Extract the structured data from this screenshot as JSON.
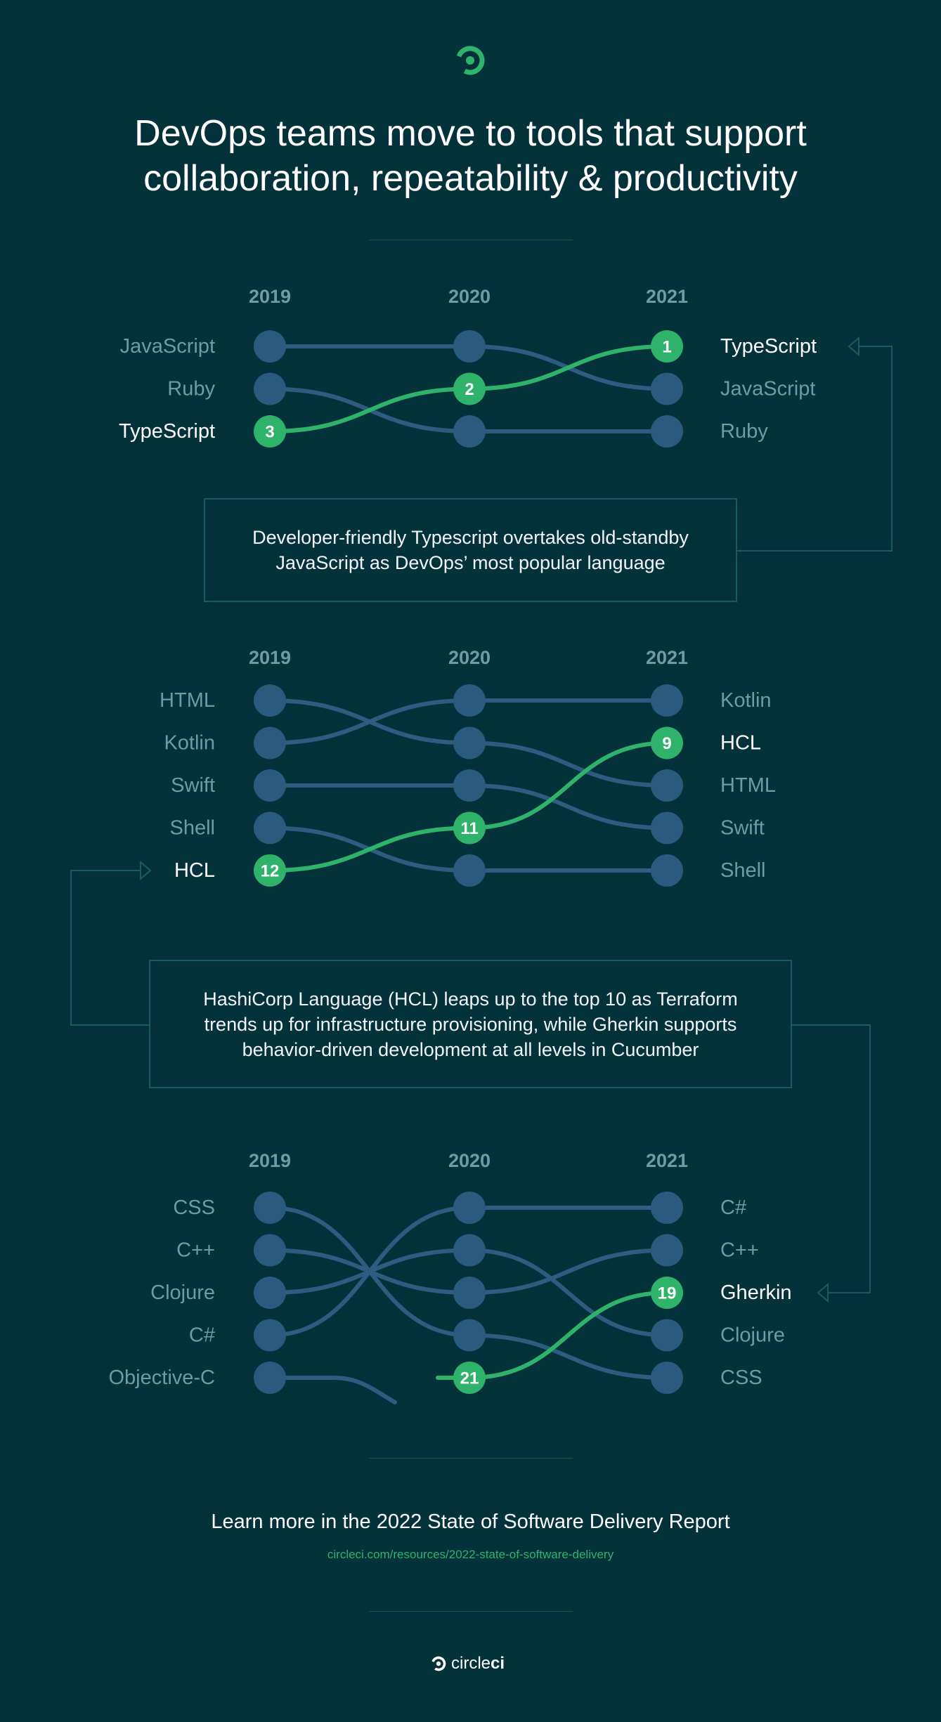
{
  "title": "DevOps teams move to tools that support\ncollaboration, repeatability & productivity",
  "colors": {
    "background": "#04323b",
    "node": "#2a5a7e",
    "line": "#2d5c80",
    "highlight": "#2fb36a",
    "label_dim": "#6f9aa8",
    "year_label": "#6f9aa8",
    "connector": "#1b5a64"
  },
  "icons": {
    "logo": "circleci-logo-icon",
    "arrow": "triangle-arrow-icon"
  },
  "chart_data": [
    {
      "type": "bump",
      "years": [
        "2019",
        "2020",
        "2021"
      ],
      "left_labels": [
        "JavaScript",
        "Ruby",
        "TypeScript"
      ],
      "right_labels": [
        "TypeScript",
        "JavaScript",
        "Ruby"
      ],
      "highlight": "TypeScript",
      "series": [
        {
          "name": "JavaScript",
          "positions": [
            1,
            1,
            2
          ]
        },
        {
          "name": "Ruby",
          "positions": [
            2,
            3,
            3
          ]
        },
        {
          "name": "TypeScript",
          "positions": [
            3,
            2,
            1
          ],
          "ranks": [
            "3",
            "2",
            "1"
          ]
        }
      ]
    },
    {
      "type": "bump",
      "years": [
        "2019",
        "2020",
        "2021"
      ],
      "left_labels": [
        "HTML",
        "Kotlin",
        "Swift",
        "Shell",
        "HCL"
      ],
      "right_labels": [
        "Kotlin",
        "HCL",
        "HTML",
        "Swift",
        "Shell"
      ],
      "highlight": "HCL",
      "series": [
        {
          "name": "HTML",
          "positions": [
            1,
            2,
            3
          ]
        },
        {
          "name": "Kotlin",
          "positions": [
            2,
            1,
            1
          ]
        },
        {
          "name": "Swift",
          "positions": [
            3,
            3,
            4
          ]
        },
        {
          "name": "Shell",
          "positions": [
            4,
            5,
            5
          ]
        },
        {
          "name": "HCL",
          "positions": [
            5,
            4,
            2
          ],
          "ranks": [
            "12",
            "11",
            "9"
          ]
        }
      ]
    },
    {
      "type": "bump",
      "years": [
        "2019",
        "2020",
        "2021"
      ],
      "left_labels": [
        "CSS",
        "C++",
        "Clojure",
        "C#",
        "Objective-C"
      ],
      "right_labels": [
        "C#",
        "C++",
        "Gherkin",
        "Clojure",
        "CSS"
      ],
      "highlight": "Gherkin",
      "series": [
        {
          "name": "CSS",
          "positions": [
            1,
            4,
            5
          ]
        },
        {
          "name": "C++",
          "positions": [
            2,
            3,
            2
          ]
        },
        {
          "name": "Clojure",
          "positions": [
            3,
            2,
            4
          ]
        },
        {
          "name": "C#",
          "positions": [
            4,
            1,
            1
          ]
        },
        {
          "name": "Objective-C",
          "positions": [
            5,
            null,
            null
          ]
        },
        {
          "name": "Gherkin",
          "positions": [
            null,
            5,
            3
          ],
          "ranks": [
            "",
            "21",
            "19"
          ]
        }
      ]
    }
  ],
  "callouts": [
    "Developer-friendly Typescript overtakes old-standby\nJavaScript as DevOps’ most popular language",
    "HashiCorp Language (HCL) leaps up to the top 10 as Terraform\ntrends up for infrastructure provisioning, while Gherkin supports\nbehavior-driven development at all  levels in Cucumber"
  ],
  "footer": {
    "title": "Learn more in the 2022 State of Software Delivery Report",
    "link": "circleci.com/resources/2022-state-of-software-delivery",
    "brand_light": "circle",
    "brand_bold": "ci"
  }
}
